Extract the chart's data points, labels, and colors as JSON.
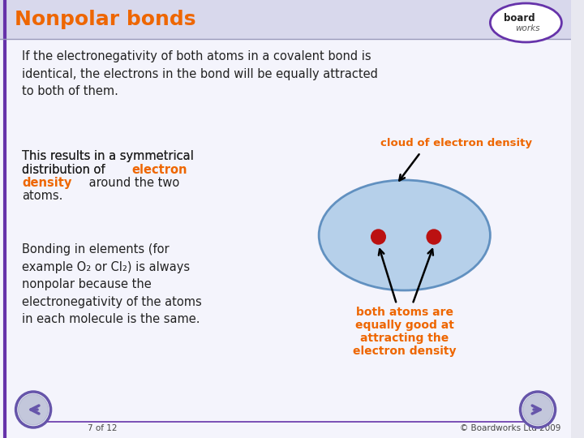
{
  "bg_color": "#e8e8f0",
  "header_color": "#d8d8ec",
  "header_text": "Nonpolar bonds",
  "header_text_color": "#ee6600",
  "header_font_size": 18,
  "body_bg": "#f4f4fc",
  "para1": "If the electronegativity of both atoms in a covalent bond is\nidentical, the electrons in the bond will be equally attracted\nto both of them.",
  "orange_color": "#ee6600",
  "body_text_color": "#222222",
  "ellipse_color": "#b0cce8",
  "ellipse_edge": "#5588bb",
  "atom_color": "#bb1111",
  "cloud_label": "cloud of electron density",
  "bottom_label_lines": [
    "both atoms are",
    "equally good at",
    "attracting the",
    "electron density"
  ],
  "footer_left": "7 of 12",
  "footer_right": "© Boardworks Ltd 2009",
  "body_text_size": 10.5,
  "nav_color": "#6655aa",
  "nav_inner": "#aab0cc",
  "logo_border": "#6633aa"
}
